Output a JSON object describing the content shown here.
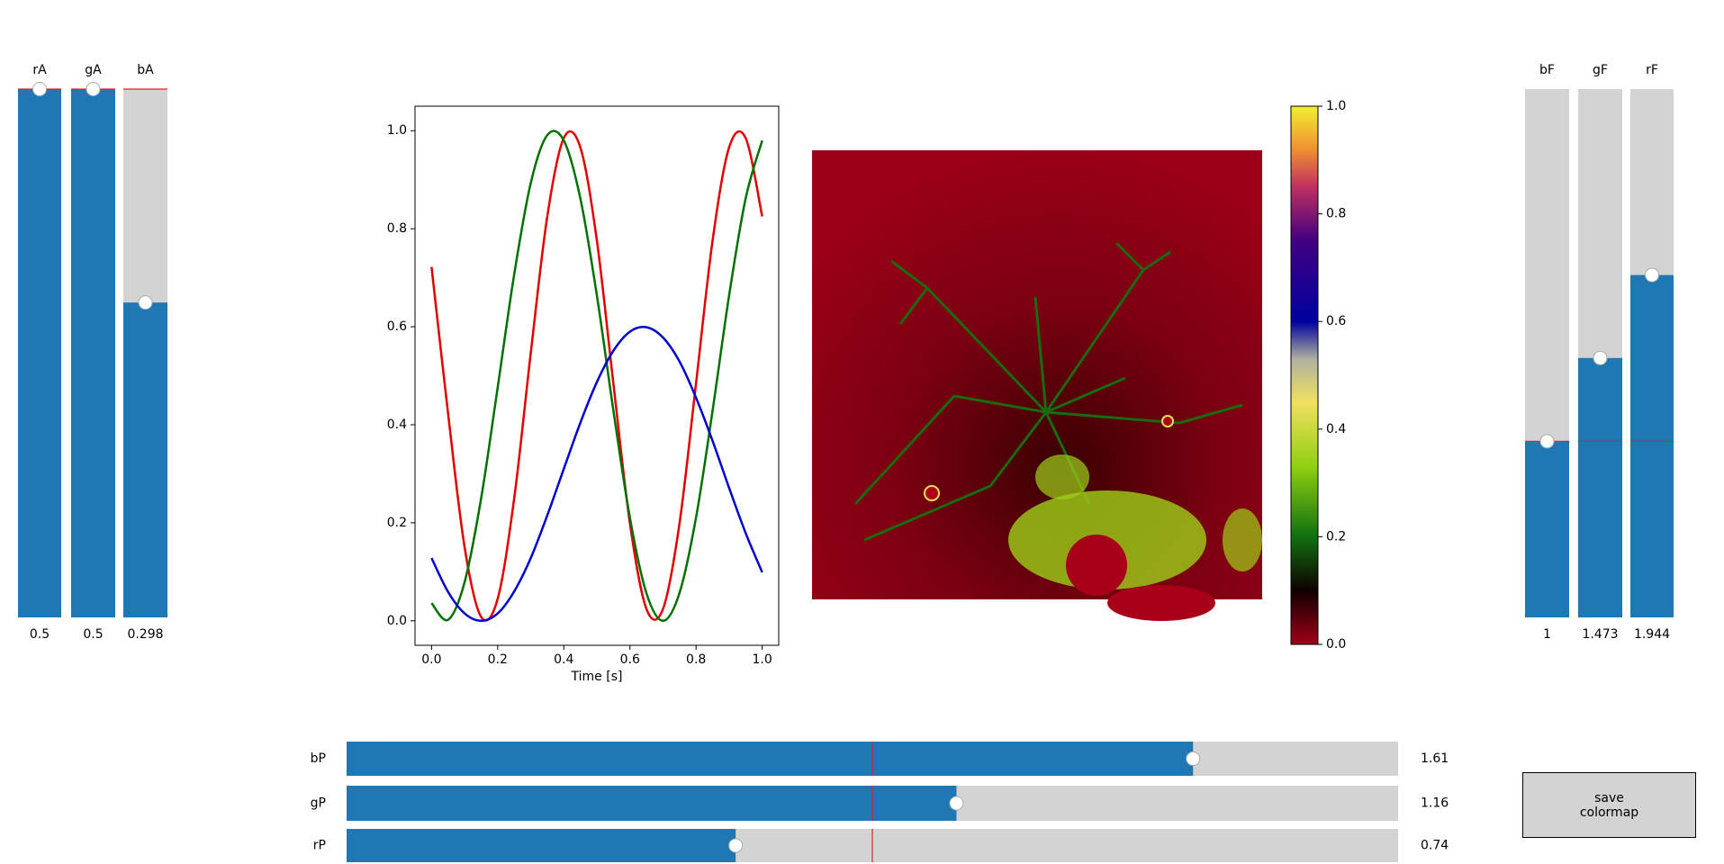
{
  "sliders": [
    {
      "label": "rA",
      "value": 0.5,
      "min": 0,
      "max": 0.5,
      "init": 0.5,
      "orientation": "vertical"
    },
    {
      "label": "gA",
      "value": 0.5,
      "min": 0,
      "max": 0.5,
      "init": 0.5,
      "orientation": "vertical"
    },
    {
      "label": "bA",
      "value": 0.298,
      "min": 0,
      "max": 0.5,
      "init": 0.5,
      "orientation": "vertical"
    },
    {
      "label": "bF",
      "value": 1,
      "min": 0,
      "max": 3,
      "init": 1,
      "orientation": "vertical"
    },
    {
      "label": "gF",
      "value": 1.473,
      "min": 0,
      "max": 3,
      "init": 1,
      "orientation": "vertical"
    },
    {
      "label": "rF",
      "value": 1.944,
      "min": 0,
      "max": 3,
      "init": 1,
      "orientation": "vertical"
    },
    {
      "label": "bP",
      "value": 1.61,
      "min": 0,
      "max": 2,
      "init": 1,
      "orientation": "horizontal"
    },
    {
      "label": "gP",
      "value": 1.16,
      "min": 0,
      "max": 2,
      "init": 1,
      "orientation": "horizontal"
    },
    {
      "label": "rP",
      "value": 0.74,
      "min": 0,
      "max": 2,
      "init": 1,
      "orientation": "horizontal"
    }
  ],
  "chart_data": {
    "type": "line",
    "xlabel": "Time [s]",
    "x": [
      0,
      0.05,
      0.1,
      0.15,
      0.2,
      0.25,
      0.3,
      0.35,
      0.4,
      0.45,
      0.5,
      0.55,
      0.6,
      0.65,
      0.7,
      0.75,
      0.8,
      0.85,
      0.9,
      0.95,
      1
    ],
    "series": [
      {
        "color": "#e00000",
        "values": [
          0.722,
          0.423,
          0.15,
          0.008,
          0.045,
          0.25,
          0.546,
          0.825,
          0.985,
          0.966,
          0.776,
          0.484,
          0.199,
          0.024,
          0.024,
          0.199,
          0.485,
          0.776,
          0.966,
          0.985,
          0.825
        ]
      },
      {
        "color": "#007000",
        "values": [
          0.036,
          0.002,
          0.079,
          0.25,
          0.476,
          0.707,
          0.893,
          0.991,
          0.98,
          0.862,
          0.664,
          0.429,
          0.21,
          0.056,
          0,
          0.057,
          0.211,
          0.429,
          0.664,
          0.862,
          0.98
        ]
      },
      {
        "color": "#0000cc",
        "values": [
          0.128,
          0.059,
          0.015,
          0,
          0.015,
          0.06,
          0.128,
          0.215,
          0.31,
          0.404,
          0.487,
          0.551,
          0.59,
          0.599,
          0.578,
          0.529,
          0.455,
          0.367,
          0.271,
          0.179,
          0.099
        ]
      }
    ],
    "xlim": [
      -0.05,
      1.05
    ],
    "ylim": [
      -0.05,
      1.05
    ],
    "xticks": [
      {
        "value": 0,
        "label": "0.0"
      },
      {
        "value": 0.2,
        "label": "0.2"
      },
      {
        "value": 0.4,
        "label": "0.4"
      },
      {
        "value": 0.6,
        "label": "0.6"
      },
      {
        "value": 0.8,
        "label": "0.8"
      },
      {
        "value": 1,
        "label": "1.0"
      }
    ],
    "yticks": [
      {
        "value": 0,
        "label": "0.0"
      },
      {
        "value": 0.2,
        "label": "0.2"
      },
      {
        "value": 0.4,
        "label": "0.4"
      },
      {
        "value": 0.6,
        "label": "0.6"
      },
      {
        "value": 0.8,
        "label": "0.8"
      },
      {
        "value": 1,
        "label": "1.0"
      }
    ]
  },
  "colorbar": {
    "lim": [
      0,
      1
    ],
    "ticks": [
      {
        "value": 0,
        "label": "0.0"
      },
      {
        "value": 0.2,
        "label": "0.2"
      },
      {
        "value": 0.4,
        "label": "0.4"
      },
      {
        "value": 0.6,
        "label": "0.6"
      },
      {
        "value": 0.8,
        "label": "0.8"
      },
      {
        "value": 1,
        "label": "1.0"
      }
    ],
    "stops": [
      [
        0,
        "#a00018"
      ],
      [
        0.1,
        "#100000"
      ],
      [
        0.2,
        "#107010"
      ],
      [
        0.33,
        "#90d010"
      ],
      [
        0.45,
        "#f0e060"
      ],
      [
        0.53,
        "#b0b0a0"
      ],
      [
        0.6,
        "#0000a0"
      ],
      [
        0.75,
        "#400080"
      ],
      [
        0.85,
        "#c03060"
      ],
      [
        0.92,
        "#f09030"
      ],
      [
        1,
        "#f0f030"
      ]
    ]
  },
  "button": {
    "label": "save\ncolormap"
  }
}
